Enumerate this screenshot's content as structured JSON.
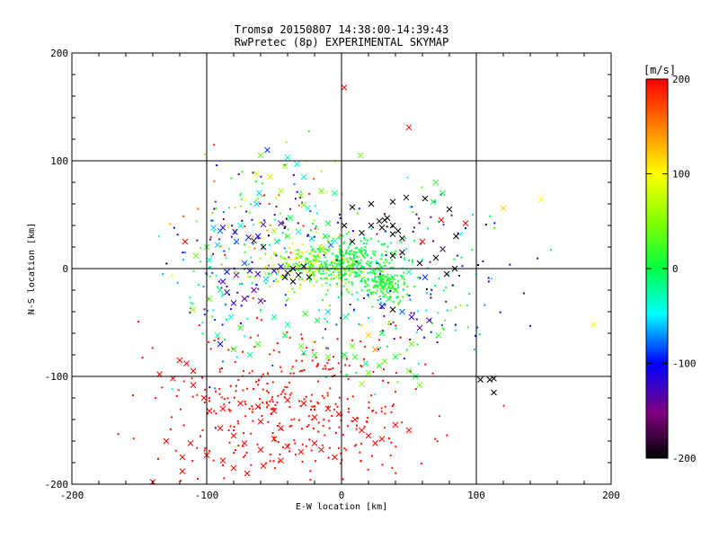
{
  "chart_data": {
    "type": "scatter",
    "title": "Tromsø 20150807 14:38:00-14:39:43",
    "subtitle": "RwPretec (8p) EXPERIMENTAL SKYMAP",
    "xlabel": "E-W location [km]",
    "ylabel": "N-S location [km]",
    "xlim": [
      -200,
      200
    ],
    "ylim": [
      -200,
      200
    ],
    "xticks": [
      "-200",
      "-100",
      "0",
      "100",
      "200"
    ],
    "yticks": [
      "-200",
      "-100",
      "0",
      "100",
      "200"
    ],
    "grid": "major lines at ±100 and 0",
    "colorbar": {
      "label": "[m/s]",
      "range": [
        -200,
        200
      ],
      "ticks": [
        "200",
        "100",
        "0",
        "-100",
        "-200"
      ],
      "colormap": "rainbow (black → purple → blue → cyan → green → yellow → red)"
    },
    "series": [
      {
        "marker": "x",
        "note": "large markers",
        "points": [
          [
            2,
            168,
            220
          ],
          [
            50,
            131,
            210
          ],
          [
            14,
            105,
            40
          ],
          [
            -60,
            105,
            40
          ],
          [
            -55,
            110,
            -90
          ],
          [
            -40,
            103,
            -40
          ],
          [
            -33,
            97,
            -40
          ],
          [
            -53,
            85,
            80
          ],
          [
            -63,
            88,
            80
          ],
          [
            -42,
            95,
            60
          ],
          [
            -28,
            85,
            -40
          ],
          [
            -61,
            70,
            -60
          ],
          [
            -45,
            72,
            60
          ],
          [
            -30,
            68,
            60
          ],
          [
            -15,
            72,
            40
          ],
          [
            -5,
            70,
            -20
          ],
          [
            -28,
            59,
            50
          ],
          [
            -63,
            60,
            -60
          ],
          [
            -25,
            56,
            -40
          ],
          [
            -38,
            47,
            0
          ],
          [
            -45,
            42,
            -120
          ],
          [
            -58,
            41,
            -140
          ],
          [
            -75,
            40,
            -40
          ],
          [
            -88,
            38,
            -120
          ],
          [
            -95,
            38,
            -60
          ],
          [
            -90,
            35,
            -80
          ],
          [
            -79,
            34,
            -100
          ],
          [
            -62,
            30,
            -100
          ],
          [
            -50,
            35,
            60
          ],
          [
            -69,
            29,
            -120
          ],
          [
            -78,
            25,
            -80
          ],
          [
            -65,
            26,
            -180
          ],
          [
            -58,
            20,
            -180
          ],
          [
            -48,
            25,
            -20
          ],
          [
            -40,
            30,
            20
          ],
          [
            -32,
            34,
            -40
          ],
          [
            -22,
            28,
            -60
          ],
          [
            -12,
            30,
            0
          ],
          [
            -10,
            42,
            0
          ],
          [
            2,
            40,
            -200
          ],
          [
            8,
            57,
            -200
          ],
          [
            15,
            33,
            -200
          ],
          [
            8,
            25,
            -200
          ],
          [
            22,
            40,
            -200
          ],
          [
            28,
            44,
            -200
          ],
          [
            30,
            38,
            -200
          ],
          [
            34,
            47,
            -200
          ],
          [
            38,
            40,
            -200
          ],
          [
            42,
            35,
            -200
          ],
          [
            45,
            28,
            -200
          ],
          [
            38,
            32,
            -200
          ],
          [
            32,
            45,
            -200
          ],
          [
            22,
            60,
            -200
          ],
          [
            38,
            62,
            -200
          ],
          [
            48,
            66,
            -200
          ],
          [
            62,
            65,
            -200
          ],
          [
            68,
            62,
            0
          ],
          [
            70,
            80,
            20
          ],
          [
            75,
            70,
            0
          ],
          [
            80,
            55,
            -200
          ],
          [
            85,
            30,
            -200
          ],
          [
            92,
            42,
            200
          ],
          [
            74,
            45,
            200
          ],
          [
            60,
            25,
            200
          ],
          [
            75,
            18,
            -180
          ],
          [
            70,
            10,
            -200
          ],
          [
            58,
            5,
            -200
          ],
          [
            45,
            15,
            -200
          ],
          [
            38,
            12,
            -200
          ],
          [
            84,
            0,
            -200
          ],
          [
            78,
            -5,
            -200
          ],
          [
            62,
            -8,
            -90
          ],
          [
            50,
            -3,
            -20
          ],
          [
            38,
            -8,
            0
          ],
          [
            30,
            -12,
            0
          ],
          [
            40,
            -20,
            20
          ],
          [
            35,
            -28,
            0
          ],
          [
            30,
            -35,
            -120
          ],
          [
            38,
            -38,
            -200
          ],
          [
            45,
            -40,
            -80
          ],
          [
            52,
            -45,
            -120
          ],
          [
            65,
            -48,
            -140
          ],
          [
            58,
            -55,
            -140
          ],
          [
            72,
            -62,
            20
          ],
          [
            52,
            -70,
            40
          ],
          [
            30,
            -60,
            0
          ],
          [
            25,
            -75,
            140
          ],
          [
            20,
            -62,
            120
          ],
          [
            3,
            -45,
            -20
          ],
          [
            -10,
            -40,
            -60
          ],
          [
            -18,
            -48,
            0
          ],
          [
            -27,
            -42,
            20
          ],
          [
            -40,
            -52,
            -20
          ],
          [
            -50,
            -45,
            -20
          ],
          [
            -60,
            -30,
            -140
          ],
          [
            -65,
            -20,
            -140
          ],
          [
            -72,
            -28,
            -140
          ],
          [
            -80,
            -32,
            -120
          ],
          [
            -85,
            -22,
            -100
          ],
          [
            -88,
            -12,
            -120
          ],
          [
            -85,
            -3,
            -100
          ],
          [
            -78,
            -6,
            -140
          ],
          [
            -72,
            5,
            -80
          ],
          [
            -68,
            -2,
            -100
          ],
          [
            -62,
            -5,
            -120
          ],
          [
            -56,
            -10,
            -60
          ],
          [
            -50,
            -2,
            -120
          ],
          [
            -45,
            2,
            -100
          ],
          [
            -40,
            -4,
            -200
          ],
          [
            -36,
            0,
            -200
          ],
          [
            -32,
            -6,
            -200
          ],
          [
            -28,
            2,
            -200
          ],
          [
            -24,
            -8,
            -200
          ],
          [
            -42,
            -8,
            -200
          ],
          [
            -36,
            -12,
            -200
          ],
          [
            -20,
            10,
            60
          ],
          [
            -15,
            18,
            40
          ],
          [
            -8,
            22,
            -80
          ],
          [
            -5,
            26,
            -40
          ],
          [
            -98,
            8,
            -40
          ],
          [
            -108,
            12,
            40
          ],
          [
            -116,
            25,
            200
          ],
          [
            -100,
            20,
            20
          ],
          [
            -92,
            22,
            -60
          ],
          [
            -90,
            -20,
            -20
          ],
          [
            -98,
            -28,
            40
          ],
          [
            -110,
            -38,
            60
          ],
          [
            -82,
            -45,
            -40
          ],
          [
            -75,
            -55,
            20
          ],
          [
            -92,
            -62,
            -20
          ],
          [
            -90,
            -70,
            -100
          ],
          [
            -80,
            -75,
            20
          ],
          [
            -68,
            -80,
            -20
          ],
          [
            -62,
            -70,
            20
          ],
          [
            -42,
            -62,
            0
          ],
          [
            -30,
            -72,
            40
          ],
          [
            -28,
            -78,
            -20
          ],
          [
            -20,
            -80,
            20
          ],
          [
            -10,
            -82,
            40
          ],
          [
            2,
            -80,
            0
          ],
          [
            8,
            -72,
            40
          ],
          [
            10,
            -82,
            20
          ],
          [
            18,
            -88,
            -20
          ],
          [
            20,
            -97,
            40
          ],
          [
            15,
            -107,
            60
          ],
          [
            28,
            -90,
            20
          ],
          [
            32,
            -86,
            40
          ],
          [
            40,
            -82,
            0
          ],
          [
            50,
            -95,
            40
          ],
          [
            55,
            -100,
            0
          ],
          [
            58,
            -108,
            40
          ],
          [
            120,
            56,
            120
          ],
          [
            148,
            64,
            100
          ],
          [
            187,
            -52,
            100
          ],
          [
            103,
            -103,
            -200
          ],
          [
            110,
            -103,
            -200
          ],
          [
            113,
            -102,
            -200
          ],
          [
            113,
            -115,
            -200
          ],
          [
            -120,
            -85,
            200
          ],
          [
            -115,
            -88,
            200
          ],
          [
            -110,
            -95,
            200
          ],
          [
            -125,
            -102,
            200
          ],
          [
            -135,
            -98,
            200
          ],
          [
            -110,
            -108,
            200
          ],
          [
            -102,
            -120,
            200
          ],
          [
            -88,
            -130,
            200
          ],
          [
            -75,
            -125,
            200
          ],
          [
            -62,
            -128,
            200
          ],
          [
            -50,
            -132,
            200
          ],
          [
            -40,
            -122,
            200
          ],
          [
            -28,
            -125,
            200
          ],
          [
            -20,
            -138,
            200
          ],
          [
            -10,
            -130,
            200
          ],
          [
            -2,
            -135,
            200
          ],
          [
            10,
            -140,
            200
          ],
          [
            15,
            -150,
            200
          ],
          [
            20,
            -155,
            200
          ],
          [
            25,
            -162,
            200
          ],
          [
            30,
            -158,
            200
          ],
          [
            40,
            -145,
            200
          ],
          [
            50,
            -150,
            200
          ],
          [
            -90,
            -148,
            200
          ],
          [
            -80,
            -155,
            200
          ],
          [
            -72,
            -162,
            200
          ],
          [
            -60,
            -168,
            200
          ],
          [
            -50,
            -158,
            200
          ],
          [
            -40,
            -165,
            200
          ],
          [
            -30,
            -170,
            200
          ],
          [
            -20,
            -162,
            200
          ],
          [
            -15,
            -168,
            200
          ],
          [
            -5,
            -175,
            200
          ],
          [
            -112,
            -162,
            200
          ],
          [
            -118,
            -175,
            200
          ],
          [
            -130,
            -160,
            200
          ],
          [
            -100,
            -173,
            200
          ],
          [
            -88,
            -178,
            200
          ],
          [
            -80,
            -185,
            200
          ],
          [
            -70,
            -190,
            200
          ],
          [
            -58,
            -183,
            200
          ],
          [
            -45,
            -178,
            200
          ],
          [
            -118,
            -188,
            200
          ],
          [
            -140,
            -198,
            200
          ],
          [
            -60,
            -142,
            200
          ],
          [
            -45,
            -148,
            200
          ],
          [
            -98,
            -132,
            200
          ]
        ]
      },
      {
        "marker": "dot",
        "note": "small markers",
        "clusters": [
          {
            "center": [
              5,
              5
            ],
            "spread": [
              18,
              12
            ],
            "count": 320,
            "value_range": [
              -20,
              20
            ]
          },
          {
            "center": [
              -25,
              2
            ],
            "spread": [
              25,
              10
            ],
            "count": 200,
            "value_range": [
              10,
              110
            ]
          },
          {
            "center": [
              32,
              -15
            ],
            "spread": [
              8,
              6
            ],
            "count": 120,
            "value_range": [
              0,
              25
            ]
          },
          {
            "center": [
              -40,
              -125
            ],
            "spread": [
              48,
              35
            ],
            "count": 360,
            "value_range": [
              185,
              200
            ]
          },
          {
            "center": [
              -50,
              40
            ],
            "spread": [
              30,
              30
            ],
            "count": 140,
            "value_range": [
              -200,
              200
            ]
          },
          {
            "center": [
              40,
              -45
            ],
            "spread": [
              35,
              30
            ],
            "count": 120,
            "value_range": [
              -160,
              60
            ]
          },
          {
            "center": [
              -85,
              -15
            ],
            "spread": [
              25,
              40
            ],
            "count": 100,
            "value_range": [
              -150,
              40
            ]
          },
          {
            "center": [
              70,
              30
            ],
            "spread": [
              30,
              30
            ],
            "count": 60,
            "value_range": [
              -200,
              40
            ]
          }
        ]
      }
    ]
  }
}
